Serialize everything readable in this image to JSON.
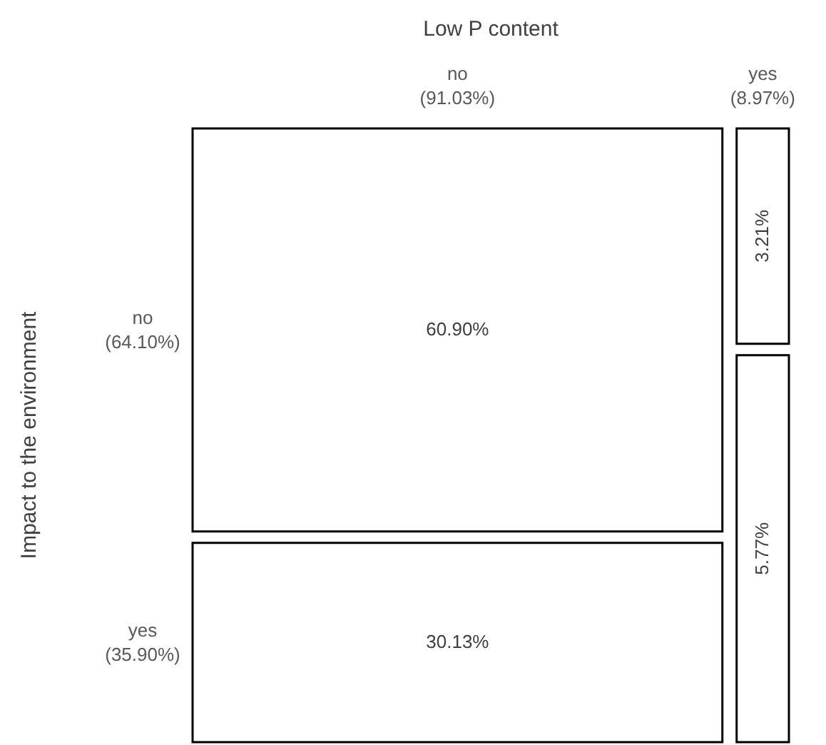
{
  "chart_data": {
    "type": "other",
    "xlabel": "Low P content",
    "ylabel": "Impact to the environment",
    "categories": [
      "no\n(91.03%)",
      "yes\n(8.97%)"
    ],
    "series": [
      {
        "name": "no\n(64.10%)",
        "values": [
          60.9,
          3.21
        ],
        "value_labels": [
          "60.90%",
          "3.21%"
        ]
      },
      {
        "name": "yes\n(35.90%)",
        "values": [
          30.13,
          5.77
        ],
        "value_labels": [
          "30.13%",
          "5.77%"
        ]
      }
    ]
  }
}
